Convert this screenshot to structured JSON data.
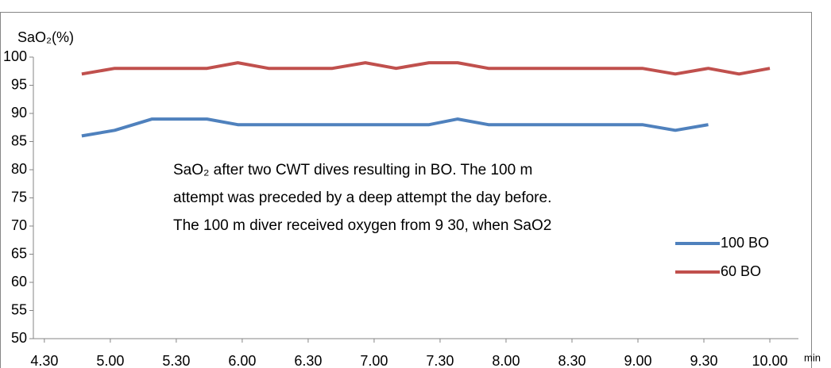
{
  "chart_data": {
    "type": "line",
    "y_label": "SaO₂(%)",
    "x_label": "min",
    "annotation": [
      "SaO₂ after two CWT dives  resulting in BO. The 100 m",
      "attempt was preceded by a deep attempt the day before.",
      "The 100 m diver received oxygen from 9 30, when SaO2"
    ],
    "xlim": [
      265,
      613
    ],
    "xticks": [
      {
        "value": 270,
        "label": "4.30"
      },
      {
        "value": 300,
        "label": "5.00"
      },
      {
        "value": 330,
        "label": "5.30"
      },
      {
        "value": 360,
        "label": "6.00"
      },
      {
        "value": 390,
        "label": "6.30"
      },
      {
        "value": 420,
        "label": "7.00"
      },
      {
        "value": 450,
        "label": "7.30"
      },
      {
        "value": 480,
        "label": "8.00"
      },
      {
        "value": 510,
        "label": "8.30"
      },
      {
        "value": 540,
        "label": "9.00"
      },
      {
        "value": 570,
        "label": "9.30"
      },
      {
        "value": 600,
        "label": "10.00"
      }
    ],
    "ylim": [
      50,
      100
    ],
    "yticks": [
      50,
      55,
      60,
      65,
      70,
      75,
      80,
      85,
      90,
      95,
      100
    ],
    "legend": "right",
    "series": [
      {
        "name": "100 BO",
        "color": "#4f81bd",
        "x": [
          287,
          302,
          319,
          344,
          358,
          445,
          458,
          472,
          542,
          557,
          572
        ],
        "values": [
          86,
          87,
          89,
          89,
          88,
          88,
          89,
          88,
          88,
          87,
          88
        ]
      },
      {
        "name": "60 BO",
        "color": "#c0504d",
        "x": [
          287,
          302,
          344,
          358,
          372,
          401,
          416,
          430,
          445,
          458,
          472,
          542,
          557,
          572,
          586,
          600
        ],
        "values": [
          97,
          98,
          98,
          99,
          98,
          98,
          99,
          98,
          99,
          99,
          98,
          98,
          97,
          98,
          97,
          98
        ]
      }
    ]
  }
}
